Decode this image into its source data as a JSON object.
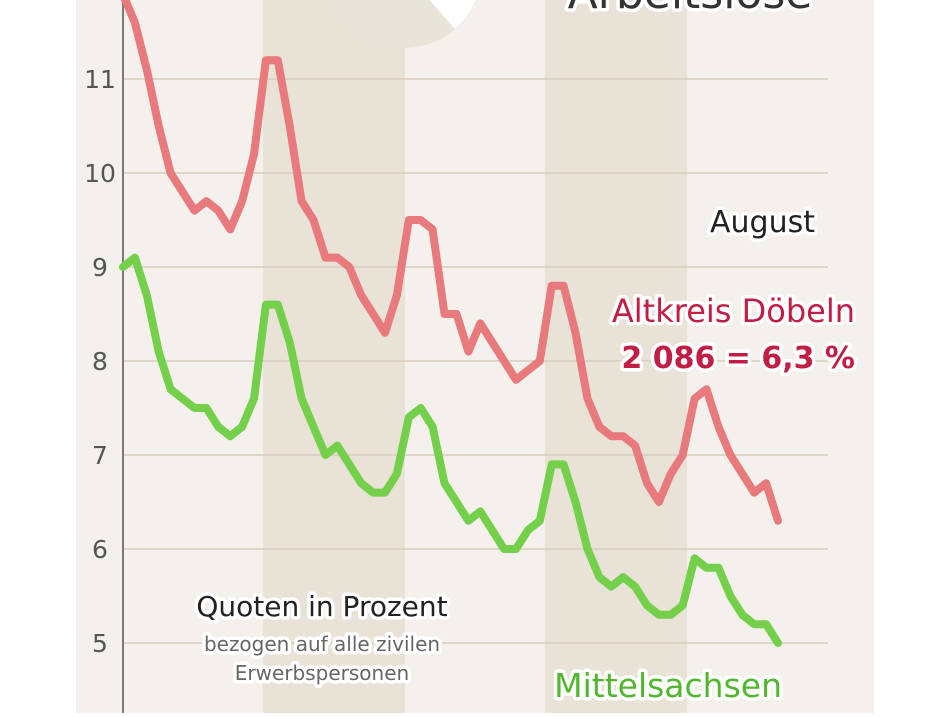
{
  "title": "Arbeitslose",
  "colors": {
    "background": "#ffffff",
    "plot_bg": "#f4f1ec",
    "band": "#e8e2d7",
    "grid": "#d7cdbd",
    "axis": "#7a7a7a",
    "altkreis": "#e8797c",
    "altkreis_text": "#c21d44",
    "mittelsachsen": "#74d04a",
    "mittelsachsen_text": "#52b72e",
    "pie_fill": "#e9e4da"
  },
  "annotations": {
    "month": "August",
    "altkreis_name": "Altkreis Döbeln",
    "altkreis_value": "2 086 = 6,3 %",
    "mittelsachsen_name": "Mittelsachsen",
    "quote_title": "Quoten in Prozent",
    "quote_sub1": "bezogen auf alle zivilen",
    "quote_sub2": "Erwerbspersonen"
  },
  "chart_data": {
    "type": "line",
    "ylim": [
      4.3,
      12
    ],
    "y_ticks": [
      "5",
      "6",
      "7",
      "8",
      "9",
      "10",
      "11"
    ],
    "ylabel": "Quoten in Prozent",
    "grid": true,
    "legend": "inline labels",
    "series": [
      {
        "name": "Altkreis Döbeln",
        "values": [
          11.9,
          11.6,
          11.1,
          10.5,
          10.0,
          9.8,
          9.6,
          9.7,
          9.6,
          9.4,
          9.7,
          10.2,
          11.2,
          11.2,
          10.5,
          9.7,
          9.5,
          9.1,
          9.1,
          9.0,
          8.7,
          8.5,
          8.3,
          8.7,
          9.5,
          9.5,
          9.4,
          8.5,
          8.5,
          8.1,
          8.4,
          8.2,
          8.0,
          7.8,
          7.9,
          8.0,
          8.8,
          8.8,
          8.3,
          7.6,
          7.3,
          7.2,
          7.2,
          7.1,
          6.7,
          6.5,
          6.8,
          7.0,
          7.6,
          7.7,
          7.3,
          7.0,
          6.8,
          6.6,
          6.7,
          6.3
        ]
      },
      {
        "name": "Mittelsachsen",
        "values": [
          9.0,
          9.1,
          8.7,
          8.1,
          7.7,
          7.6,
          7.5,
          7.5,
          7.3,
          7.2,
          7.3,
          7.6,
          8.6,
          8.6,
          8.2,
          7.6,
          7.3,
          7.0,
          7.1,
          6.9,
          6.7,
          6.6,
          6.6,
          6.8,
          7.4,
          7.5,
          7.3,
          6.7,
          6.5,
          6.3,
          6.4,
          6.2,
          6.0,
          6.0,
          6.2,
          6.3,
          6.9,
          6.9,
          6.5,
          6.0,
          5.7,
          5.6,
          5.7,
          5.6,
          5.4,
          5.3,
          5.3,
          5.4,
          5.9,
          5.8,
          5.8,
          5.5,
          5.3,
          5.2,
          5.2,
          5.0
        ]
      }
    ]
  }
}
